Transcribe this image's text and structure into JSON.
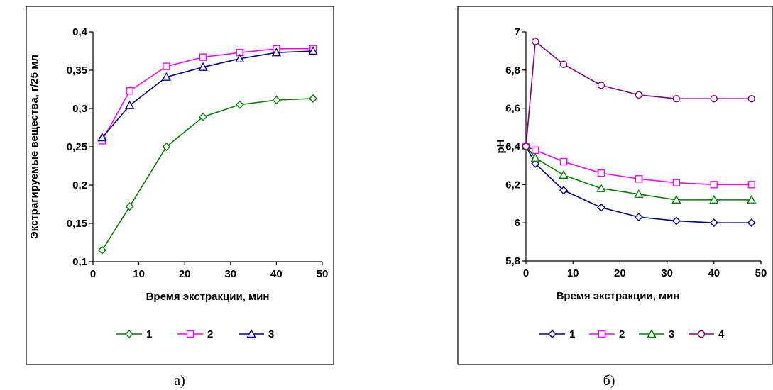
{
  "captions": [
    "а)",
    "б)"
  ],
  "chart_data": [
    {
      "type": "line",
      "xlabel": "Время экстракции, мин",
      "ylabel": "Экстрагируемые вещества, г/25 мл",
      "xlim": [
        0,
        50
      ],
      "ylim": [
        0.1,
        0.4
      ],
      "xticks": [
        0,
        10,
        20,
        30,
        40,
        50
      ],
      "yticks": [
        0.1,
        0.15,
        0.2,
        0.25,
        0.3,
        0.35,
        0.4
      ],
      "xtick_labels": [
        "0",
        "10",
        "20",
        "30",
        "40",
        "50"
      ],
      "ytick_labels": [
        "0,1",
        "0,15",
        "0,2",
        "0,25",
        "0,3",
        "0,35",
        "0,4"
      ],
      "grid": false,
      "legend": "bottom",
      "series": [
        {
          "name": "1",
          "color": "#008000",
          "marker": "diamond",
          "x": [
            2,
            8,
            16,
            24,
            32,
            40,
            48
          ],
          "y": [
            0.115,
            0.172,
            0.25,
            0.289,
            0.305,
            0.311,
            0.313
          ]
        },
        {
          "name": "2",
          "color": "#ff00ff",
          "marker": "square",
          "x": [
            2,
            8,
            16,
            24,
            32,
            40,
            48
          ],
          "y": [
            0.258,
            0.323,
            0.355,
            0.367,
            0.373,
            0.378,
            0.378
          ]
        },
        {
          "name": "3",
          "color": "#000099",
          "marker": "triangle",
          "x": [
            2,
            8,
            16,
            24,
            32,
            40,
            48
          ],
          "y": [
            0.262,
            0.304,
            0.341,
            0.354,
            0.365,
            0.373,
            0.375
          ]
        }
      ]
    },
    {
      "type": "line",
      "xlabel": "Время экстракции, мин",
      "ylabel": "pH",
      "xlim": [
        0,
        50
      ],
      "ylim": [
        5.8,
        7.0
      ],
      "xticks": [
        0,
        10,
        20,
        30,
        40,
        50
      ],
      "yticks": [
        5.8,
        6.0,
        6.2,
        6.4,
        6.6,
        6.8,
        7.0
      ],
      "xtick_labels": [
        "0",
        "10",
        "20",
        "30",
        "40",
        "50"
      ],
      "ytick_labels": [
        "5,8",
        "6",
        "6,2",
        "6,4",
        "6,6",
        "6,8",
        "7"
      ],
      "grid": false,
      "legend": "bottom",
      "series": [
        {
          "name": "1",
          "color": "#000099",
          "marker": "diamond",
          "x": [
            0,
            2,
            8,
            16,
            24,
            32,
            40,
            48
          ],
          "y": [
            6.4,
            6.31,
            6.17,
            6.08,
            6.03,
            6.01,
            6.0,
            6.0
          ]
        },
        {
          "name": "2",
          "color": "#ff00ff",
          "marker": "square",
          "x": [
            0,
            2,
            8,
            16,
            24,
            32,
            40,
            48
          ],
          "y": [
            6.4,
            6.38,
            6.32,
            6.26,
            6.23,
            6.21,
            6.2,
            6.2
          ]
        },
        {
          "name": "3",
          "color": "#008000",
          "marker": "triangle",
          "x": [
            0,
            2,
            8,
            16,
            24,
            32,
            40,
            48
          ],
          "y": [
            6.4,
            6.34,
            6.25,
            6.18,
            6.15,
            6.12,
            6.12,
            6.12
          ]
        },
        {
          "name": "4",
          "color": "#800080",
          "marker": "circle",
          "x": [
            0,
            2,
            8,
            16,
            24,
            32,
            40,
            48
          ],
          "y": [
            6.4,
            6.95,
            6.83,
            6.72,
            6.67,
            6.65,
            6.65,
            6.65
          ]
        }
      ]
    }
  ]
}
